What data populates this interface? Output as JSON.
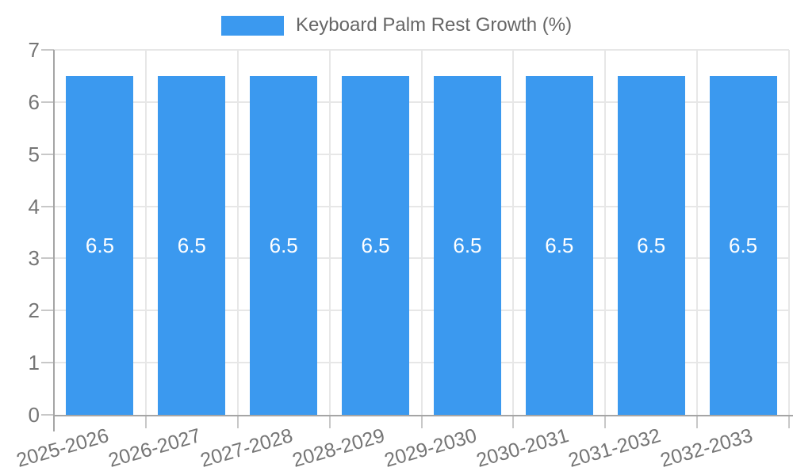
{
  "chart_data": {
    "type": "bar",
    "title": "Keyboard Palm Rest Growth (%)",
    "categories": [
      "2025-2026",
      "2026-2027",
      "2027-2028",
      "2028-2029",
      "2029-2030",
      "2030-2031",
      "2031-2032",
      "2032-2033"
    ],
    "values": [
      6.5,
      6.5,
      6.5,
      6.5,
      6.5,
      6.5,
      6.5,
      6.5
    ],
    "bar_value_labels": [
      "6.5",
      "6.5",
      "6.5",
      "6.5",
      "6.5",
      "6.5",
      "6.5",
      "6.5"
    ],
    "series": [
      {
        "name": "Keyboard Palm Rest Growth (%)",
        "values": [
          6.5,
          6.5,
          6.5,
          6.5,
          6.5,
          6.5,
          6.5,
          6.5
        ]
      }
    ],
    "xlabel": "",
    "ylabel": "",
    "ylim": [
      0,
      7
    ],
    "yticks": [
      0,
      1,
      2,
      3,
      4,
      5,
      6,
      7
    ],
    "ytick_labels": [
      "0",
      "1",
      "2",
      "3",
      "4",
      "5",
      "6",
      "7"
    ],
    "grid": true,
    "legend_position": "top",
    "bar_color": "#3B99EF"
  },
  "colors": {
    "bar": "#3B99EF",
    "grid_line": "#E7E7E7",
    "axis_line": "#A5A5A5",
    "tick_mark": "#C8C8C8",
    "tick_label": "#757575",
    "title_text": "#666666",
    "value_label": "#FFFFFF",
    "background": "#FFFFFF"
  }
}
